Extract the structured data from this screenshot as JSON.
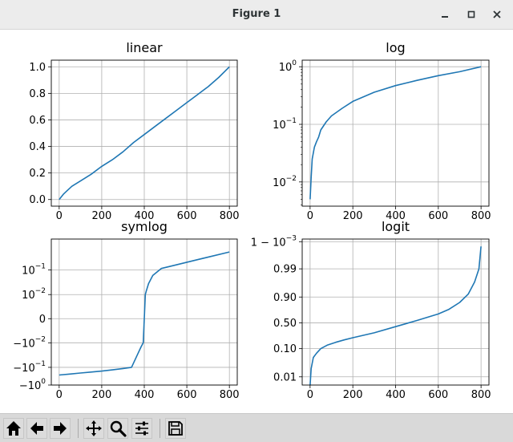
{
  "window": {
    "title": "Figure 1"
  },
  "toolbar": {
    "tools": [
      {
        "name": "home-icon"
      },
      {
        "name": "back-arrow-icon"
      },
      {
        "name": "forward-arrow-icon"
      },
      {
        "name": "pan-move-icon"
      },
      {
        "name": "zoom-magnifier-icon"
      },
      {
        "name": "subplots-config-icon"
      },
      {
        "name": "save-floppy-icon"
      }
    ]
  },
  "colors": {
    "line": "#1f77b4",
    "grid": "#b0b0b0"
  },
  "chart_data": [
    {
      "type": "line",
      "title": "linear",
      "yscale": "linear",
      "xlim": [
        -37,
        837
      ],
      "ylim": [
        -0.05,
        1.05
      ],
      "xticks": [
        "0",
        "200",
        "400",
        "600",
        "800"
      ],
      "yticks": [
        "0.0",
        "0.2",
        "0.4",
        "0.6",
        "0.8",
        "1.0"
      ],
      "grid": true,
      "series": [
        {
          "x": [
            0,
            10,
            20,
            40,
            60,
            100,
            150,
            200,
            250,
            300,
            350,
            400,
            450,
            500,
            550,
            600,
            650,
            700,
            750,
            800
          ],
          "y": [
            0.0,
            0.02,
            0.04,
            0.07,
            0.1,
            0.14,
            0.19,
            0.25,
            0.3,
            0.36,
            0.43,
            0.49,
            0.55,
            0.61,
            0.67,
            0.73,
            0.79,
            0.85,
            0.92,
            1.0
          ]
        }
      ]
    },
    {
      "type": "line",
      "title": "log",
      "yscale": "log",
      "xlim": [
        -37,
        837
      ],
      "ylim": [
        0.0038,
        1.3
      ],
      "xticks": [
        "0",
        "200",
        "400",
        "600",
        "800"
      ],
      "yticks": [
        "10^-2",
        "10^-1",
        "10^0"
      ],
      "grid": true,
      "series": [
        {
          "x": [
            0,
            5,
            10,
            20,
            30,
            40,
            50,
            75,
            100,
            150,
            200,
            300,
            400,
            500,
            600,
            700,
            800
          ],
          "y": [
            0.005,
            0.012,
            0.025,
            0.04,
            0.05,
            0.06,
            0.08,
            0.11,
            0.14,
            0.19,
            0.25,
            0.36,
            0.47,
            0.58,
            0.7,
            0.82,
            1.0
          ]
        }
      ]
    },
    {
      "type": "line",
      "title": "symlog",
      "yscale": "symlog",
      "xlim": [
        -37,
        837
      ],
      "ylim": [
        -1,
        0.7
      ],
      "xticks": [
        "0",
        "200",
        "400",
        "600",
        "800"
      ],
      "yticks": [
        "-10^0",
        "-10^-1",
        "-10^-2",
        "0",
        "10^-2",
        "10^-1"
      ],
      "grid": true,
      "series": [
        {
          "x": [
            0,
            50,
            100,
            150,
            200,
            250,
            300,
            340,
            370,
            385,
            395,
            400,
            405,
            410,
            420,
            440,
            480,
            550,
            650,
            800
          ],
          "y": [
            -0.49,
            -0.44,
            -0.39,
            -0.34,
            -0.29,
            -0.23,
            -0.16,
            -0.1,
            -0.05,
            -0.025,
            -0.01,
            0.0,
            0.01,
            0.025,
            0.05,
            0.08,
            0.13,
            0.2,
            0.3,
            0.45
          ]
        }
      ]
    },
    {
      "type": "line",
      "title": "logit",
      "yscale": "logit",
      "xlim": [
        -37,
        837
      ],
      "ylim": [
        0.005,
        0.9992
      ],
      "xticks": [
        "0",
        "200",
        "400",
        "600",
        "800"
      ],
      "yticks": [
        "0.01",
        "0.10",
        "0.50",
        "0.90",
        "0.99",
        "1 - 10^-3"
      ],
      "grid": true,
      "series": [
        {
          "x": [
            0,
            5,
            15,
            30,
            50,
            80,
            120,
            160,
            200,
            300,
            400,
            500,
            600,
            650,
            700,
            740,
            770,
            790,
            800
          ],
          "y": [
            0.005,
            0.02,
            0.05,
            0.07,
            0.1,
            0.13,
            0.16,
            0.19,
            0.22,
            0.3,
            0.42,
            0.55,
            0.68,
            0.76,
            0.85,
            0.92,
            0.97,
            0.99,
            0.9985
          ]
        }
      ]
    }
  ]
}
